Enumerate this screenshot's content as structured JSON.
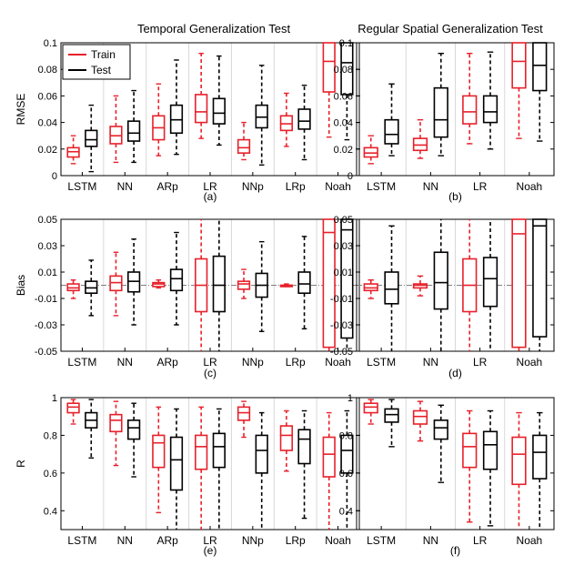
{
  "colors": {
    "train": "#e8202a",
    "test": "#000000",
    "grid": "#d8d8d8",
    "zero": "#7f7f7f"
  },
  "headers": {
    "left": "Temporal Generalization Test",
    "right": "Regular Spatial Generalization Test"
  },
  "legend": {
    "train": "Train",
    "test": "Test"
  },
  "chart_data": [
    {
      "id": "a",
      "type": "boxplot",
      "label": "(a)",
      "ylabel": "RMSE",
      "ylim": [
        0,
        0.1
      ],
      "yticks": [
        0,
        0.02,
        0.04,
        0.06,
        0.08,
        0.1
      ],
      "ytick_labels": [
        "0",
        "0.02",
        "0.04",
        "0.06",
        "0.08",
        "0.1"
      ],
      "categories": [
        "LSTM",
        "NN",
        "ARp",
        "LR",
        "NNp",
        "LRp",
        "Noah"
      ],
      "series": [
        {
          "name": "Train",
          "boxes": [
            {
              "min": 0.009,
              "q1": 0.014,
              "median": 0.018,
              "q3": 0.021,
              "max": 0.03
            },
            {
              "min": 0.01,
              "q1": 0.024,
              "median": 0.03,
              "q3": 0.037,
              "max": 0.06
            },
            {
              "min": 0.015,
              "q1": 0.027,
              "median": 0.036,
              "q3": 0.045,
              "max": 0.069
            },
            {
              "min": 0.028,
              "q1": 0.04,
              "median": 0.048,
              "q3": 0.061,
              "max": 0.092
            },
            {
              "min": 0.012,
              "q1": 0.017,
              "median": 0.021,
              "q3": 0.027,
              "max": 0.04
            },
            {
              "min": 0.022,
              "q1": 0.034,
              "median": 0.039,
              "q3": 0.045,
              "max": 0.062
            },
            {
              "min": 0.029,
              "q1": 0.063,
              "median": 0.086,
              "q3": 0.1,
              "max": 0.1
            }
          ]
        },
        {
          "name": "Test",
          "boxes": [
            {
              "min": 0.003,
              "q1": 0.022,
              "median": 0.027,
              "q3": 0.034,
              "max": 0.053
            },
            {
              "min": 0.01,
              "q1": 0.026,
              "median": 0.032,
              "q3": 0.041,
              "max": 0.064
            },
            {
              "min": 0.016,
              "q1": 0.032,
              "median": 0.042,
              "q3": 0.053,
              "max": 0.087
            },
            {
              "min": 0.023,
              "q1": 0.039,
              "median": 0.047,
              "q3": 0.058,
              "max": 0.09
            },
            {
              "min": 0.008,
              "q1": 0.036,
              "median": 0.044,
              "q3": 0.053,
              "max": 0.083
            },
            {
              "min": 0.012,
              "q1": 0.035,
              "median": 0.041,
              "q3": 0.05,
              "max": 0.068
            },
            {
              "min": 0.027,
              "q1": 0.061,
              "median": 0.085,
              "q3": 0.1,
              "max": 0.1
            }
          ]
        }
      ]
    },
    {
      "id": "b",
      "type": "boxplot",
      "label": "(b)",
      "ylabel": "",
      "ylim": [
        0,
        0.1
      ],
      "yticks": [
        0,
        0.02,
        0.04,
        0.06,
        0.08,
        0.1
      ],
      "ytick_labels": [
        "0",
        "0.02",
        "0.04",
        "0.06",
        "0.08",
        "0.1"
      ],
      "categories": [
        "LSTM",
        "NN",
        "LR",
        "Noah"
      ],
      "series": [
        {
          "name": "Train",
          "boxes": [
            {
              "min": 0.009,
              "q1": 0.014,
              "median": 0.017,
              "q3": 0.021,
              "max": 0.03
            },
            {
              "min": 0.013,
              "q1": 0.019,
              "median": 0.023,
              "q3": 0.028,
              "max": 0.042
            },
            {
              "min": 0.024,
              "q1": 0.039,
              "median": 0.048,
              "q3": 0.06,
              "max": 0.092
            },
            {
              "min": 0.028,
              "q1": 0.066,
              "median": 0.086,
              "q3": 0.1,
              "max": 0.1
            }
          ]
        },
        {
          "name": "Test",
          "boxes": [
            {
              "min": 0.015,
              "q1": 0.024,
              "median": 0.031,
              "q3": 0.042,
              "max": 0.069
            },
            {
              "min": 0.015,
              "q1": 0.029,
              "median": 0.042,
              "q3": 0.066,
              "max": 0.092
            },
            {
              "min": 0.02,
              "q1": 0.04,
              "median": 0.048,
              "q3": 0.06,
              "max": 0.093
            },
            {
              "min": 0.026,
              "q1": 0.064,
              "median": 0.083,
              "q3": 0.1,
              "max": 0.1
            }
          ]
        }
      ]
    },
    {
      "id": "c",
      "type": "boxplot",
      "label": "(c)",
      "ylabel": "Bias",
      "ylim": [
        -0.05,
        0.05
      ],
      "yticks": [
        -0.05,
        -0.03,
        -0.01,
        0.01,
        0.03,
        0.05
      ],
      "ytick_labels": [
        "-0.05",
        "-0.03",
        "-0.01",
        "0.01",
        "0.03",
        "0.05"
      ],
      "reference_line": 0,
      "categories": [
        "LSTM",
        "NN",
        "ARp",
        "LR",
        "NNp",
        "LRp",
        "Noah"
      ],
      "series": [
        {
          "name": "Train",
          "boxes": [
            {
              "min": -0.01,
              "q1": -0.004,
              "median": -0.002,
              "q3": 0.001,
              "max": 0.004
            },
            {
              "min": -0.023,
              "q1": -0.004,
              "median": 0.002,
              "q3": 0.007,
              "max": 0.025
            },
            {
              "min": -0.002,
              "q1": -0.001,
              "median": 0.001,
              "q3": 0.002,
              "max": 0.004
            },
            {
              "min": -0.05,
              "q1": -0.02,
              "median": 0.0,
              "q3": 0.02,
              "max": 0.05
            },
            {
              "min": -0.01,
              "q1": -0.003,
              "median": 0.001,
              "q3": 0.003,
              "max": 0.012
            },
            {
              "min": -0.001,
              "q1": -0.001,
              "median": 0.0,
              "q3": 0.0,
              "max": 0.001
            },
            {
              "min": -0.05,
              "q1": -0.047,
              "median": 0.04,
              "q3": 0.05,
              "max": 0.05
            }
          ]
        },
        {
          "name": "Test",
          "boxes": [
            {
              "min": -0.023,
              "q1": -0.006,
              "median": -0.002,
              "q3": 0.003,
              "max": 0.019
            },
            {
              "min": -0.03,
              "q1": -0.005,
              "median": 0.003,
              "q3": 0.01,
              "max": 0.035
            },
            {
              "min": -0.03,
              "q1": -0.004,
              "median": 0.005,
              "q3": 0.012,
              "max": 0.04
            },
            {
              "min": -0.05,
              "q1": -0.02,
              "median": 0.0,
              "q3": 0.022,
              "max": 0.05
            },
            {
              "min": -0.035,
              "q1": -0.009,
              "median": 0.0,
              "q3": 0.009,
              "max": 0.033
            },
            {
              "min": -0.033,
              "q1": -0.006,
              "median": 0.001,
              "q3": 0.01,
              "max": 0.037
            },
            {
              "min": -0.05,
              "q1": -0.04,
              "median": 0.042,
              "q3": 0.05,
              "max": 0.05
            }
          ]
        }
      ]
    },
    {
      "id": "d",
      "type": "boxplot",
      "label": "(d)",
      "ylabel": "",
      "ylim": [
        -0.05,
        0.05
      ],
      "yticks": [
        -0.05,
        -0.03,
        -0.01,
        0.01,
        0.03,
        0.05
      ],
      "ytick_labels": [
        "-0.05",
        "-0.03",
        "-0.01",
        "0.01",
        "0.03",
        "0.05"
      ],
      "reference_line": 0,
      "categories": [
        "LSTM",
        "NN",
        "LR",
        "Noah"
      ],
      "series": [
        {
          "name": "Train",
          "boxes": [
            {
              "min": -0.01,
              "q1": -0.004,
              "median": -0.002,
              "q3": 0.001,
              "max": 0.004
            },
            {
              "min": -0.008,
              "q1": -0.002,
              "median": 0.0,
              "q3": 0.001,
              "max": 0.007
            },
            {
              "min": -0.05,
              "q1": -0.02,
              "median": 0.0,
              "q3": 0.02,
              "max": 0.05
            },
            {
              "min": -0.05,
              "q1": -0.047,
              "median": 0.039,
              "q3": 0.05,
              "max": 0.05
            }
          ]
        },
        {
          "name": "Test",
          "boxes": [
            {
              "min": -0.05,
              "q1": -0.014,
              "median": -0.003,
              "q3": 0.01,
              "max": 0.045
            },
            {
              "min": -0.05,
              "q1": -0.018,
              "median": 0.002,
              "q3": 0.025,
              "max": 0.05
            },
            {
              "min": -0.05,
              "q1": -0.016,
              "median": 0.005,
              "q3": 0.021,
              "max": 0.05
            },
            {
              "min": -0.05,
              "q1": -0.039,
              "median": 0.045,
              "q3": 0.05,
              "max": 0.05
            }
          ]
        }
      ]
    },
    {
      "id": "e",
      "type": "boxplot",
      "label": "(e)",
      "ylabel": "R",
      "ylim": [
        0.3,
        1.0
      ],
      "yticks": [
        0.4,
        0.6,
        0.8,
        1.0
      ],
      "ytick_labels": [
        "0.4",
        "0.6",
        "0.8",
        "1"
      ],
      "categories": [
        "LSTM",
        "NN",
        "ARp",
        "LR",
        "NNp",
        "LRp",
        "Noah"
      ],
      "series": [
        {
          "name": "Train",
          "boxes": [
            {
              "min": 0.86,
              "q1": 0.92,
              "median": 0.95,
              "q3": 0.97,
              "max": 0.99
            },
            {
              "min": 0.64,
              "q1": 0.82,
              "median": 0.88,
              "q3": 0.91,
              "max": 0.98
            },
            {
              "min": 0.39,
              "q1": 0.63,
              "median": 0.76,
              "q3": 0.8,
              "max": 0.95
            },
            {
              "min": 0.3,
              "q1": 0.62,
              "median": 0.74,
              "q3": 0.8,
              "max": 0.95
            },
            {
              "min": 0.79,
              "q1": 0.88,
              "median": 0.92,
              "q3": 0.95,
              "max": 0.98
            },
            {
              "min": 0.61,
              "q1": 0.72,
              "median": 0.8,
              "q3": 0.85,
              "max": 0.93
            },
            {
              "min": 0.3,
              "q1": 0.58,
              "median": 0.7,
              "q3": 0.79,
              "max": 0.92
            }
          ]
        },
        {
          "name": "Test",
          "boxes": [
            {
              "min": 0.68,
              "q1": 0.84,
              "median": 0.88,
              "q3": 0.92,
              "max": 0.99
            },
            {
              "min": 0.58,
              "q1": 0.78,
              "median": 0.84,
              "q3": 0.88,
              "max": 0.97
            },
            {
              "min": 0.3,
              "q1": 0.51,
              "median": 0.67,
              "q3": 0.79,
              "max": 0.94
            },
            {
              "min": 0.3,
              "q1": 0.63,
              "median": 0.74,
              "q3": 0.81,
              "max": 0.94
            },
            {
              "min": 0.3,
              "q1": 0.6,
              "median": 0.72,
              "q3": 0.8,
              "max": 0.92
            },
            {
              "min": 0.36,
              "q1": 0.65,
              "median": 0.78,
              "q3": 0.83,
              "max": 0.93
            },
            {
              "min": 0.3,
              "q1": 0.6,
              "median": 0.72,
              "q3": 0.8,
              "max": 0.93
            }
          ]
        }
      ]
    },
    {
      "id": "f",
      "type": "boxplot",
      "label": "(f)",
      "ylabel": "",
      "ylim": [
        0.3,
        1.0
      ],
      "yticks": [
        0.4,
        0.6,
        0.8,
        1.0
      ],
      "ytick_labels": [
        "0.4",
        "0.6",
        "0.8",
        "1"
      ],
      "categories": [
        "LSTM",
        "NN",
        "LR",
        "Noah"
      ],
      "series": [
        {
          "name": "Train",
          "boxes": [
            {
              "min": 0.86,
              "q1": 0.92,
              "median": 0.95,
              "q3": 0.97,
              "max": 0.99
            },
            {
              "min": 0.77,
              "q1": 0.86,
              "median": 0.9,
              "q3": 0.93,
              "max": 0.98
            },
            {
              "min": 0.34,
              "q1": 0.63,
              "median": 0.74,
              "q3": 0.81,
              "max": 0.93
            },
            {
              "min": 0.3,
              "q1": 0.54,
              "median": 0.7,
              "q3": 0.79,
              "max": 0.92
            }
          ]
        },
        {
          "name": "Test",
          "boxes": [
            {
              "min": 0.74,
              "q1": 0.87,
              "median": 0.91,
              "q3": 0.94,
              "max": 0.99
            },
            {
              "min": 0.55,
              "q1": 0.78,
              "median": 0.84,
              "q3": 0.88,
              "max": 0.96
            },
            {
              "min": 0.32,
              "q1": 0.62,
              "median": 0.75,
              "q3": 0.82,
              "max": 0.93
            },
            {
              "min": 0.3,
              "q1": 0.57,
              "median": 0.71,
              "q3": 0.8,
              "max": 0.92
            }
          ]
        }
      ]
    }
  ]
}
